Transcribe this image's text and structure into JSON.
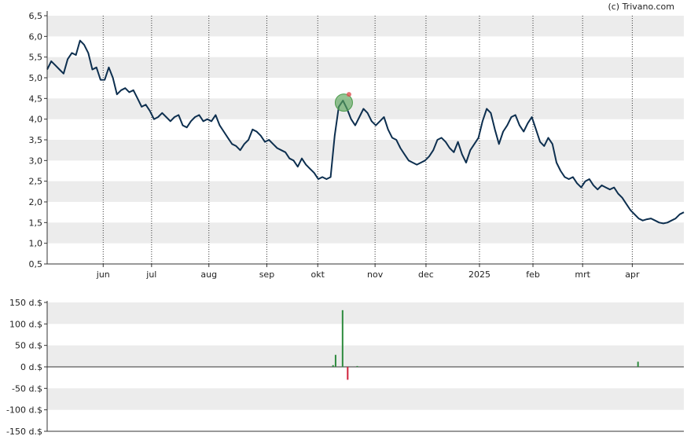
{
  "copyright": "(c) Trivano.com",
  "chart_data": [
    {
      "type": "line",
      "y_ticks": [
        "6,5",
        "6,0",
        "5,5",
        "5,0",
        "4,5",
        "4,0",
        "3,5",
        "3,0",
        "2,5",
        "2,0",
        "1,5",
        "1,0",
        "0,5"
      ],
      "y_tick_values": [
        6.5,
        6.0,
        5.5,
        5.0,
        4.5,
        4.0,
        3.5,
        3.0,
        2.5,
        2.0,
        1.5,
        1.0,
        0.5
      ],
      "ylim": [
        0.5,
        6.5
      ],
      "month_labels": [
        "jun",
        "jul",
        "aug",
        "sep",
        "okt",
        "nov",
        "dec",
        "2025",
        "feb",
        "mrt",
        "apr"
      ],
      "month_positions": [
        0.088,
        0.164,
        0.254,
        0.345,
        0.425,
        0.515,
        0.595,
        0.679,
        0.763,
        0.841,
        0.919
      ],
      "grid": "horizontal bands + dotted monthly verticals",
      "line_color": "#0d2f4f",
      "series": [
        {
          "values": [
            5.2,
            5.4,
            5.3,
            5.2,
            5.1,
            5.45,
            5.6,
            5.55,
            5.9,
            5.8,
            5.6,
            5.2,
            5.25,
            4.95,
            4.95,
            5.25,
            5.0,
            4.6,
            4.7,
            4.75,
            4.65,
            4.7,
            4.5,
            4.3,
            4.35,
            4.2,
            4.0,
            4.05,
            4.15,
            4.05,
            3.95,
            4.05,
            4.1,
            3.85,
            3.8,
            3.95,
            4.05,
            4.1,
            3.95,
            4.0,
            3.95,
            4.1,
            3.85,
            3.7,
            3.55,
            3.4,
            3.35,
            3.25,
            3.4,
            3.5,
            3.75,
            3.7,
            3.6,
            3.45,
            3.5,
            3.4,
            3.3,
            3.25,
            3.2,
            3.05,
            3.0,
            2.85,
            3.05,
            2.9,
            2.8,
            2.7,
            2.55,
            2.6,
            2.55,
            2.6,
            3.6,
            4.3,
            4.45,
            4.25,
            4.0,
            3.85,
            4.05,
            4.25,
            4.15,
            3.95,
            3.85,
            3.95,
            4.05,
            3.75,
            3.55,
            3.5,
            3.3,
            3.15,
            3.0,
            2.95,
            2.9,
            2.95,
            3.0,
            3.1,
            3.25,
            3.5,
            3.55,
            3.45,
            3.3,
            3.2,
            3.45,
            3.15,
            2.95,
            3.25,
            3.4,
            3.55,
            3.95,
            4.25,
            4.15,
            3.75,
            3.4,
            3.7,
            3.85,
            4.05,
            4.1,
            3.85,
            3.7,
            3.9,
            4.05,
            3.75,
            3.45,
            3.35,
            3.55,
            3.4,
            2.95,
            2.75,
            2.6,
            2.55,
            2.6,
            2.45,
            2.35,
            2.5,
            2.55,
            2.4,
            2.3,
            2.4,
            2.35,
            2.3,
            2.35,
            2.2,
            2.1,
            1.95,
            1.8,
            1.7,
            1.6,
            1.55,
            1.58,
            1.6,
            1.55,
            1.5,
            1.48,
            1.5,
            1.55,
            1.6,
            1.7,
            1.75
          ]
        }
      ],
      "markers": [
        {
          "type": "circle",
          "color": "#5aa55a",
          "value": 4.4,
          "at": 0.466
        },
        {
          "type": "dot",
          "color": "#e05050",
          "value": 4.6,
          "at": 0.474
        }
      ]
    },
    {
      "type": "bar",
      "y_ticks": [
        "150 d.$",
        "100 d.$",
        "50 d.$",
        "0 d.$",
        "-50 d.$",
        "-100 d.$",
        "-150 d.$"
      ],
      "y_tick_values": [
        150,
        100,
        50,
        0,
        -50,
        -100,
        -150
      ],
      "ylim": [
        -150,
        150
      ],
      "bars": [
        {
          "at": 0.449,
          "value": 4,
          "color": "#2e8b3e"
        },
        {
          "at": 0.453,
          "value": 28,
          "color": "#2e8b3e"
        },
        {
          "at": 0.464,
          "value": 132,
          "color": "#2e8b3e"
        },
        {
          "at": 0.472,
          "value": -30,
          "color": "#d0203a"
        },
        {
          "at": 0.487,
          "value": 2,
          "color": "#2e8b3e"
        },
        {
          "at": 0.928,
          "value": 12,
          "color": "#2e8b3e"
        }
      ]
    }
  ]
}
